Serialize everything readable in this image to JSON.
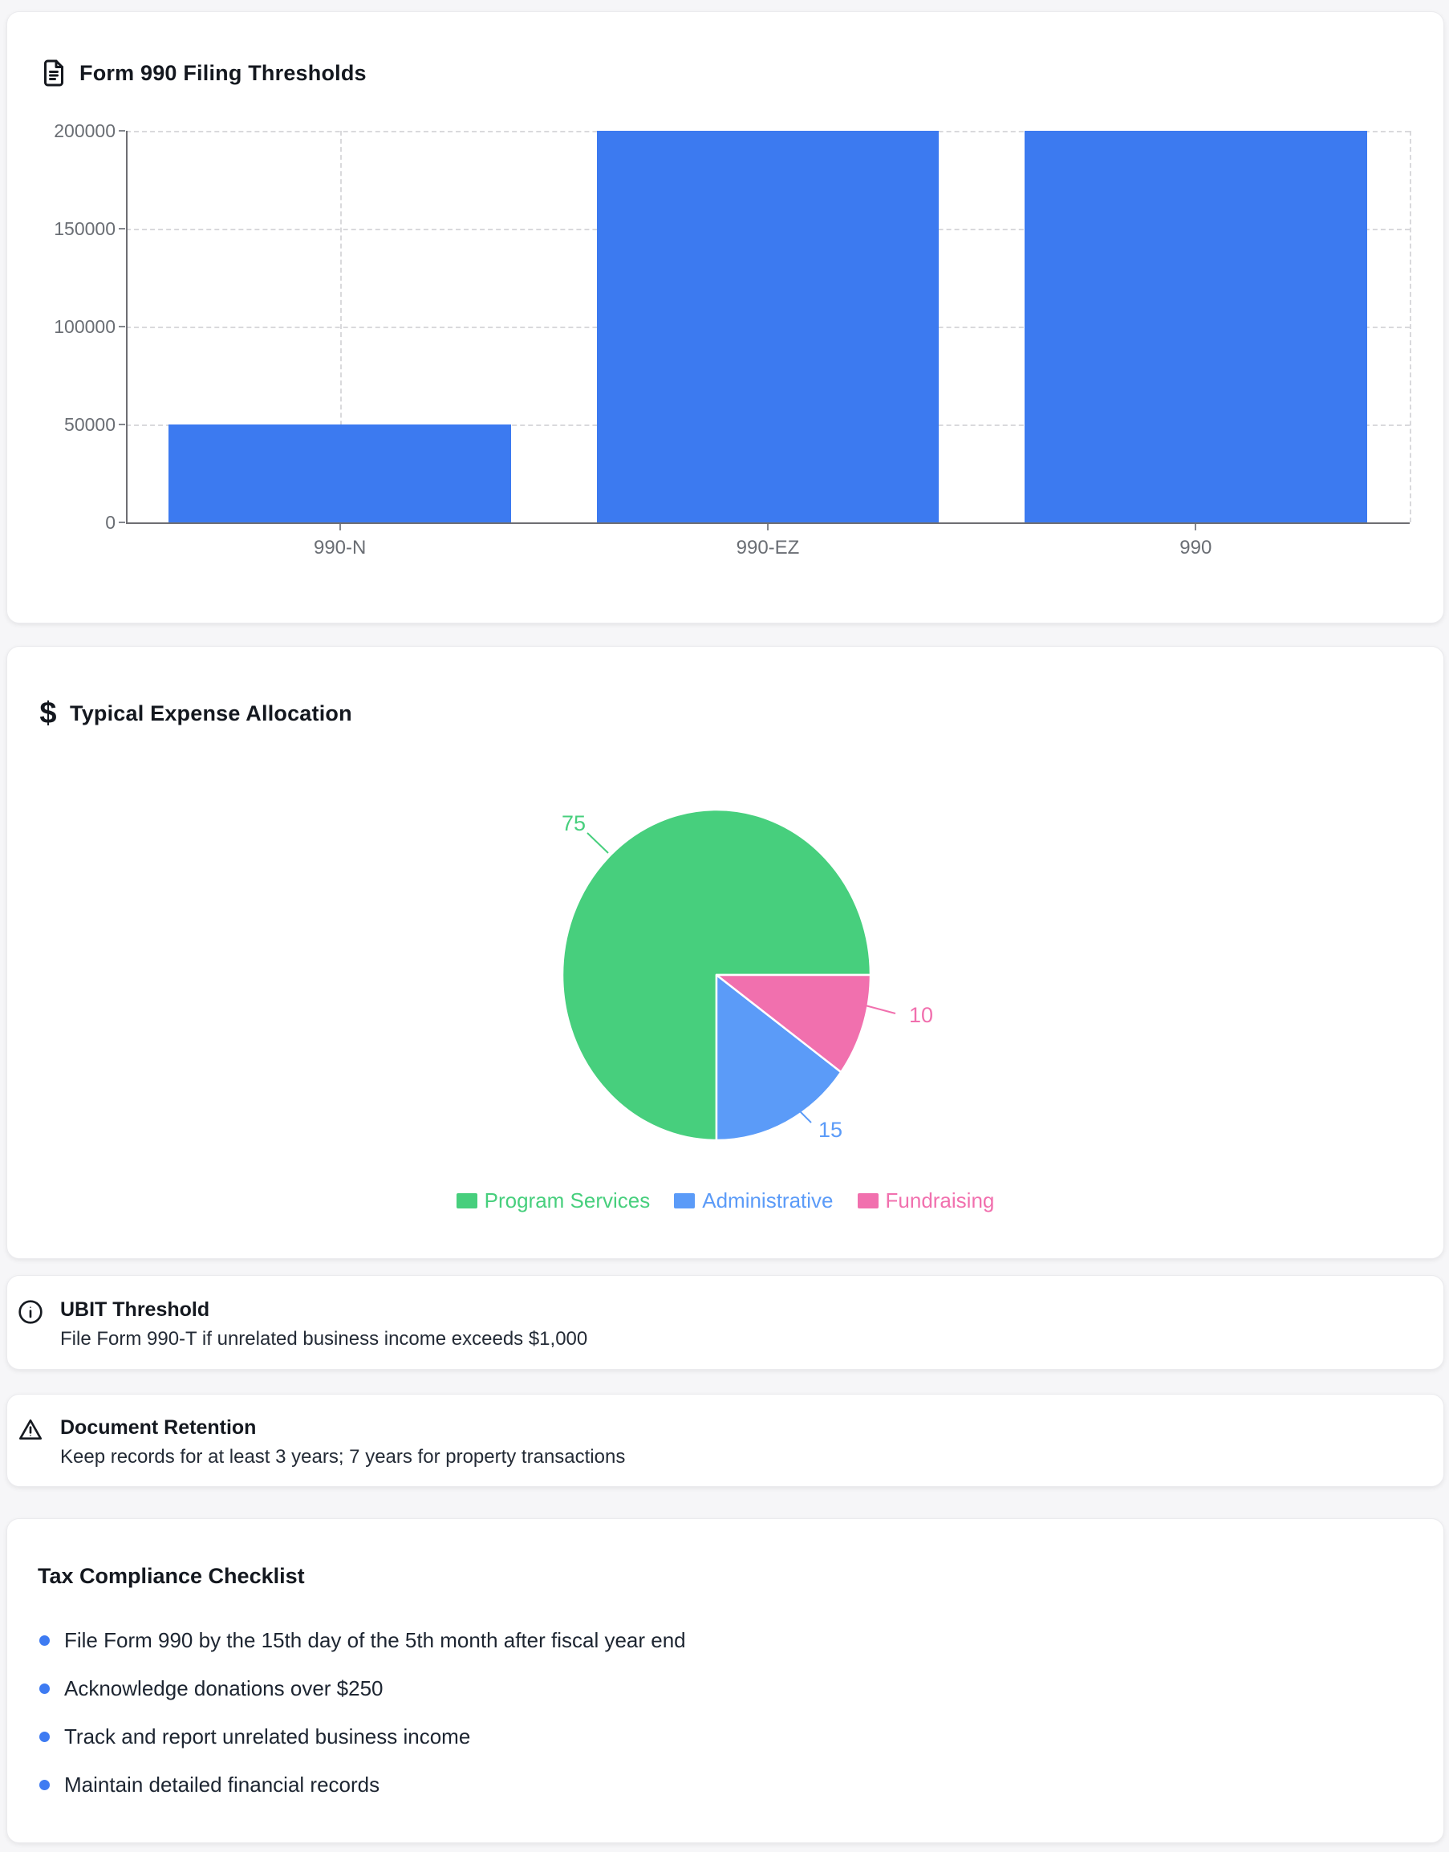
{
  "bar_card": {
    "title": "Form 990 Filing Thresholds",
    "icon": "file-text-icon"
  },
  "pie_card": {
    "title": "Typical Expense Allocation",
    "icon": "dollar-icon",
    "dollar_glyph": "$"
  },
  "ubit_card": {
    "icon": "info-icon",
    "title": "UBIT Threshold",
    "body": "File Form 990-T if unrelated business income exceeds $1,000"
  },
  "retention_card": {
    "icon": "warning-icon",
    "title": "Document Retention",
    "body": "Keep records for at least 3 years; 7 years for property transactions"
  },
  "checklist_card": {
    "title": "Tax Compliance Checklist",
    "items": [
      "File Form 990 by the 15th day of the 5th month after fiscal year end",
      "Acknowledge donations over $250",
      "Track and report unrelated business income",
      "Maintain detailed financial records"
    ],
    "bullet_color": "#3e7bf2"
  },
  "chart_data": [
    {
      "type": "bar",
      "title": "Form 990 Filing Thresholds",
      "categories": [
        "990-N",
        "990-EZ",
        "990"
      ],
      "values": [
        50000,
        200000,
        200000
      ],
      "ylim": [
        0,
        200000
      ],
      "yticks": [
        0,
        50000,
        100000,
        150000,
        200000
      ],
      "xlabel": "",
      "ylabel": "",
      "grid": true,
      "bar_color": "#3c7af0"
    },
    {
      "type": "pie",
      "title": "Typical Expense Allocation",
      "labels": [
        "Program Services",
        "Administrative",
        "Fundraising"
      ],
      "values": [
        75,
        15,
        10
      ],
      "colors": [
        "#47cf7d",
        "#5b9bf8",
        "#f170ae"
      ],
      "data_labels": [
        "75",
        "15",
        "10"
      ],
      "legend_position": "bottom"
    }
  ]
}
